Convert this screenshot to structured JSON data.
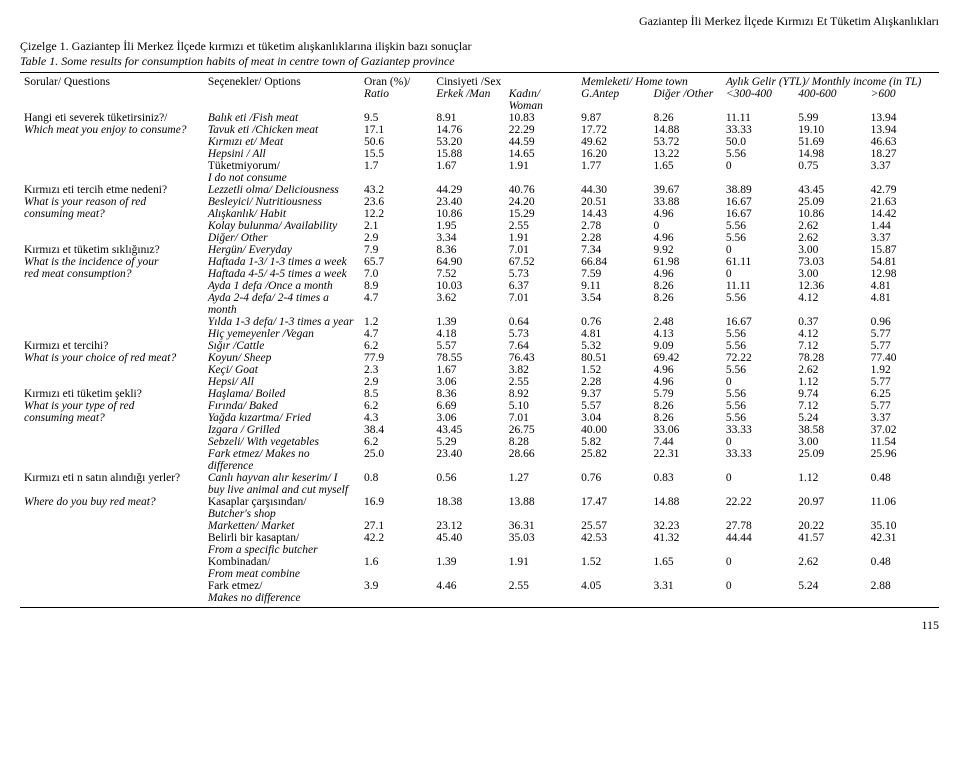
{
  "header_right": "Gaziantep İli Merkez İlçede Kırmızı Et Tüketim Alışkanlıkları",
  "caption_tr": "Çizelge 1. Gaziantep İli Merkez İlçede kırmızı et tüketim alışkanlıklarına ilişkin bazı sonuçlar",
  "caption_en": "Table 1. Some results for consumption habits of meat in centre town of Gaziantep province",
  "cols": {
    "top": {
      "q": "Sorular/ Questions",
      "o": "Seçenekler/ Options",
      "ratio": "Oran (%)/",
      "sex": "Cinsiyeti /Sex",
      "home": "Memleketi/ Home town",
      "income": "Aylık Gelir (YTL)/ Monthly income (in TL)"
    },
    "sub": {
      "ratio": "Ratio",
      "man": "Erkek /Man",
      "woman": "Kadın/ Woman",
      "antep": "G.Antep",
      "other": "Diğer /Other",
      "i1": "<300-400",
      "i2": "400-600",
      "i3": ">600"
    }
  },
  "questions": [
    {
      "q_tr": "Hangi eti severek tüketirsiniz?/",
      "q_en": "Which meat you enjoy to consume?",
      "rows": [
        {
          "o": "Balık eti /Fish meat",
          "it": true,
          "v": [
            "9.5",
            "8.91",
            "10.83",
            "9.87",
            "8.26",
            "11.11",
            "5.99",
            "13.94"
          ]
        },
        {
          "o": "Tavuk eti /Chicken meat",
          "it": true,
          "v": [
            "17.1",
            "14.76",
            "22.29",
            "17.72",
            "14.88",
            "33.33",
            "19.10",
            "13.94"
          ]
        },
        {
          "o": "Kırmızı et/ Meat",
          "it": true,
          "v": [
            "50.6",
            "53.20",
            "44.59",
            "49.62",
            "53.72",
            "50.0",
            "51.69",
            "46.63"
          ]
        },
        {
          "o": "Hepsini / All",
          "it": true,
          "v": [
            "15.5",
            "15.88",
            "14.65",
            "16.20",
            "13.22",
            "5.56",
            "14.98",
            "18.27"
          ]
        },
        {
          "o": "Tüketmiyorum/",
          "o2": "I do not consume",
          "v": [
            "1.7",
            "1.67",
            "1.91",
            "1.77",
            "1.65",
            "0",
            "0.75",
            "3.37"
          ]
        }
      ]
    },
    {
      "q_tr": "Kırmızı eti tercih etme nedeni?",
      "q_en": "What is your reason of consuming red meat?",
      "rows": [
        {
          "o": "Lezzetli olma/ Deliciousness",
          "it": true,
          "v": [
            "43.2",
            "44.29",
            "40.76",
            "44.30",
            "39.67",
            "38.89",
            "43.45",
            "42.79"
          ]
        },
        {
          "o": "Besleyici/ Nutritiousness",
          "it": true,
          "v": [
            "23.6",
            "23.40",
            "24.20",
            "20.51",
            "33.88",
            "16.67",
            "25.09",
            "21.63"
          ]
        },
        {
          "o": "Alışkanlık/ Habit",
          "it": true,
          "v": [
            "12.2",
            "10.86",
            "15.29",
            "14.43",
            "4.96",
            "16.67",
            "10.86",
            "14.42"
          ]
        },
        {
          "o": "Kolay bulunma/ Availability",
          "it": true,
          "v": [
            "2.1",
            "1.95",
            "2.55",
            "2.78",
            "0",
            "5.56",
            "2.62",
            "1.44"
          ]
        },
        {
          "o": "Diğer/ Other",
          "it": true,
          "v": [
            "2.9",
            "3.34",
            "1.91",
            "2.28",
            "4.96",
            "5.56",
            "2.62",
            "3.37"
          ]
        }
      ]
    },
    {
      "q_tr": "Kırmızı et tüketim sıklığınız?",
      "q_en": "What is the incidence of your red meat consumption?",
      "rows": [
        {
          "o": "Hergün/ Everyday",
          "it": true,
          "v": [
            "7.9",
            "8.36",
            "7.01",
            "7.34",
            "9.92",
            "0",
            "3.00",
            "15.87"
          ]
        },
        {
          "o": "Haftada 1-3/ 1-3 times a week",
          "it": true,
          "v": [
            "65.7",
            "64.90",
            "67.52",
            "66.84",
            "61.98",
            "61.11",
            "73.03",
            "54.81"
          ]
        },
        {
          "o": "Haftada 4-5/ 4-5 times a week",
          "it": true,
          "v": [
            "7.0",
            "7.52",
            "5.73",
            "7.59",
            "4.96",
            "0",
            "3.00",
            "12.98"
          ]
        },
        {
          "o": "Ayda 1 defa /Once a month",
          "it": true,
          "v": [
            "8.9",
            "10.03",
            "6.37",
            "9.11",
            "8.26",
            "11.11",
            "12.36",
            "4.81"
          ]
        },
        {
          "o": "Ayda 2-4 defa/ 2-4 times a month",
          "it": true,
          "v": [
            "4.7",
            "3.62",
            "7.01",
            "3.54",
            "8.26",
            "5.56",
            "4.12",
            "4.81"
          ]
        },
        {
          "o": "Yılda 1-3 defa/ 1-3 times a year",
          "it": true,
          "v": [
            "1.2",
            "1.39",
            "0.64",
            "0.76",
            "2.48",
            "16.67",
            "0.37",
            "0.96"
          ]
        },
        {
          "o": "Hiç yemeyenler /Vegan",
          "it": true,
          "v": [
            "4.7",
            "4.18",
            "5.73",
            "4.81",
            "4.13",
            "5.56",
            "4.12",
            "5.77"
          ]
        }
      ]
    },
    {
      "q_tr": "Kırmızı et tercihi?",
      "q_en": "What is your choice of red meat?",
      "rows": [
        {
          "o": "Sığır /Cattle",
          "it": true,
          "v": [
            "6.2",
            "5.57",
            "7.64",
            "5.32",
            "9.09",
            "5.56",
            "7.12",
            "5.77"
          ]
        },
        {
          "o": "Koyun/ Sheep",
          "it": true,
          "v": [
            "77.9",
            "78.55",
            "76.43",
            "80.51",
            "69.42",
            "72.22",
            "78.28",
            "77.40"
          ]
        },
        {
          "o": "Keçi/ Goat",
          "it": true,
          "v": [
            "2.3",
            "1.67",
            "3.82",
            "1.52",
            "4.96",
            "5.56",
            "2.62",
            "1.92"
          ]
        },
        {
          "o": "Hepsi/ All",
          "it": true,
          "v": [
            "2.9",
            "3.06",
            "2.55",
            "2.28",
            "4.96",
            "0",
            "1.12",
            "5.77"
          ]
        }
      ]
    },
    {
      "q_tr": "Kırmızı eti tüketim şekli?",
      "q_en": "What is your type of consuming red meat?",
      "rows": [
        {
          "o": "Haşlama/ Boiled",
          "it": true,
          "v": [
            "8.5",
            "8.36",
            "8.92",
            "9.37",
            "5.79",
            "5.56",
            "9.74",
            "6.25"
          ]
        },
        {
          "o": "Fırında/ Baked",
          "it": true,
          "v": [
            "6.2",
            "6.69",
            "5.10",
            "5.57",
            "8.26",
            "5.56",
            "7.12",
            "5.77"
          ]
        },
        {
          "o": "Yağda kızartma/ Fried",
          "it": true,
          "v": [
            "4.3",
            "3.06",
            "7.01",
            "3.04",
            "8.26",
            "5.56",
            "5.24",
            "3.37"
          ]
        },
        {
          "o": "Izgara / Grilled",
          "it": true,
          "v": [
            "38.4",
            "43.45",
            "26.75",
            "40.00",
            "33.06",
            "33.33",
            "38.58",
            "37.02"
          ]
        },
        {
          "o": "Sebzeli/ With vegetables",
          "it": true,
          "v": [
            "6.2",
            "5.29",
            "8.28",
            "5.82",
            "7.44",
            "0",
            "3.00",
            "11.54"
          ]
        },
        {
          "o": "Fark etmez/ Makes no difference",
          "it": true,
          "v": [
            "25.0",
            "23.40",
            "28.66",
            "25.82",
            "22.31",
            "33.33",
            "25.09",
            "25.96"
          ]
        }
      ]
    },
    {
      "q_tr": "Kırmızı eti n satın alındığı yerler?",
      "q_en": "Where do you buy red meat?",
      "rows": [
        {
          "o": "Canlı hayvan alır keserim/ I buy live animal and cut myself",
          "it": true,
          "v": [
            "0.8",
            "0.56",
            "1.27",
            "0.76",
            "0.83",
            "0",
            "1.12",
            "0.48"
          ]
        },
        {
          "o": "Kasaplar çarşısından/",
          "o2": "Butcher's shop",
          "v": [
            "16.9",
            "18.38",
            "13.88",
            "17.47",
            "14.88",
            "22.22",
            "20.97",
            "11.06"
          ]
        },
        {
          "o": "Marketten/ Market",
          "it": true,
          "v": [
            "27.1",
            "23.12",
            "36.31",
            "25.57",
            "32.23",
            "27.78",
            "20.22",
            "35.10"
          ]
        },
        {
          "o": "Belirli bir kasaptan/",
          "o2": "From a specific butcher",
          "v": [
            "42.2",
            "45.40",
            "35.03",
            "42.53",
            "41.32",
            "44.44",
            "41.57",
            "42.31"
          ]
        },
        {
          "o": "Kombinadan/",
          "o2": "From meat combine",
          "v": [
            "1.6",
            "1.39",
            "1.91",
            "1.52",
            "1.65",
            "0",
            "2.62",
            "0.48"
          ]
        },
        {
          "o": "Fark etmez/",
          "o2": "Makes no difference",
          "v": [
            "3.9",
            "4.46",
            "2.55",
            "4.05",
            "3.31",
            "0",
            "5.24",
            "2.88"
          ]
        }
      ]
    }
  ],
  "pagenum": "115"
}
